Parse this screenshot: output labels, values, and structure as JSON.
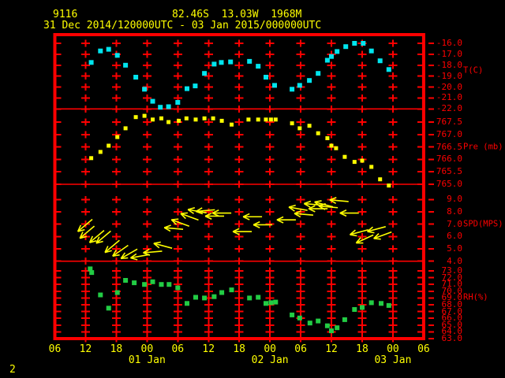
{
  "header": {
    "station_id": "9116",
    "location": "82.46S  13.03W  1968M",
    "time_range": "31 Dec 2014/120000UTC - 03 Jan 2015/000000UTC"
  },
  "footer": {
    "page_number": "2"
  },
  "colors": {
    "background": "#000000",
    "frame": "#ff0000",
    "axis_text": "#ff0000",
    "header_text": "#ffff00",
    "temperature": "#00e5ee",
    "pressure": "#ffff00",
    "wind": "#ffff00",
    "humidity": "#22cc44"
  },
  "x_axis": {
    "hour_labels": [
      "06",
      "12",
      "18",
      "00",
      "06",
      "12",
      "18",
      "00",
      "06",
      "12",
      "18",
      "00",
      "06"
    ],
    "date_labels": [
      {
        "label": "01 Jan",
        "col": 3
      },
      {
        "label": "02 Jan",
        "col": 7
      },
      {
        "label": "03 Jan",
        "col": 11
      }
    ]
  },
  "chart_data": {
    "type": "scatter",
    "subtype": "multi-panel time series (station meteogram)",
    "x_unit": "hours since 31 Dec 2014 06:00 UTC",
    "x_range": [
      0,
      72
    ],
    "grid": "plus-mark grid at 6-hour columns",
    "panels": [
      {
        "name": "temperature",
        "unit": "T(C)",
        "ticks": [
          "-16.0",
          "-17.0",
          "-18.0",
          "-19.0",
          "-20.0",
          "-21.0",
          "-22.0"
        ],
        "series": [
          [
            7.1,
            -17.75
          ],
          [
            8.9,
            -16.7
          ],
          [
            10.5,
            -16.55
          ],
          [
            12.2,
            -17.1
          ],
          [
            13.8,
            -18.0
          ],
          [
            15.8,
            -19.1
          ],
          [
            17.5,
            -20.2
          ],
          [
            19.1,
            -21.3
          ],
          [
            20.6,
            -21.85
          ],
          [
            22.2,
            -21.8
          ],
          [
            24.0,
            -21.4
          ],
          [
            25.8,
            -20.15
          ],
          [
            27.4,
            -19.9
          ],
          [
            29.2,
            -18.75
          ],
          [
            31.1,
            -17.9
          ],
          [
            32.5,
            -17.75
          ],
          [
            34.3,
            -17.7
          ],
          [
            38.0,
            -17.65
          ],
          [
            39.7,
            -18.1
          ],
          [
            41.2,
            -19.1
          ],
          [
            42.9,
            -19.85
          ],
          [
            46.3,
            -20.2
          ],
          [
            47.8,
            -19.85
          ],
          [
            49.7,
            -19.4
          ],
          [
            51.4,
            -18.75
          ],
          [
            53.2,
            -17.55
          ],
          [
            54.0,
            -17.2
          ],
          [
            55.1,
            -16.75
          ],
          [
            56.8,
            -16.3
          ],
          [
            58.5,
            -16.0
          ],
          [
            60.2,
            -16.0
          ],
          [
            61.8,
            -16.7
          ],
          [
            63.5,
            -17.6
          ],
          [
            65.2,
            -18.4
          ]
        ]
      },
      {
        "name": "pressure",
        "unit": "Pre (mb)",
        "ticks": [
          "767.5",
          "767.0",
          "766.5",
          "766.0",
          "765.5",
          "765.0"
        ],
        "series": [
          [
            7.1,
            766.05
          ],
          [
            8.9,
            766.3
          ],
          [
            10.5,
            766.55
          ],
          [
            12.2,
            766.9
          ],
          [
            13.8,
            767.25
          ],
          [
            15.8,
            767.7
          ],
          [
            17.5,
            767.75
          ],
          [
            19.1,
            767.6
          ],
          [
            20.8,
            767.65
          ],
          [
            22.2,
            767.5
          ],
          [
            24.2,
            767.55
          ],
          [
            25.7,
            767.65
          ],
          [
            27.5,
            767.6
          ],
          [
            29.2,
            767.65
          ],
          [
            30.9,
            767.65
          ],
          [
            32.6,
            767.55
          ],
          [
            34.5,
            767.4
          ],
          [
            37.8,
            767.6
          ],
          [
            39.7,
            767.6
          ],
          [
            41.2,
            767.6
          ],
          [
            42.2,
            767.6
          ],
          [
            43.1,
            767.6
          ],
          [
            46.3,
            767.45
          ],
          [
            47.8,
            767.25
          ],
          [
            49.7,
            767.35
          ],
          [
            51.4,
            767.05
          ],
          [
            53.2,
            766.85
          ],
          [
            54.0,
            766.55
          ],
          [
            54.9,
            766.45
          ],
          [
            56.6,
            766.1
          ],
          [
            58.5,
            765.9
          ],
          [
            60.0,
            765.95
          ],
          [
            61.8,
            765.7
          ],
          [
            63.5,
            765.2
          ],
          [
            65.2,
            764.95
          ]
        ]
      },
      {
        "name": "wind_speed",
        "unit": "SPD(MPS)",
        "ticks": [
          "9.0",
          "8.0",
          "7.0",
          "6.0",
          "5.0",
          "4.0"
        ],
        "vector_format": [
          "hours",
          "speed_mps",
          "arrow_direction_deg_screen"
        ],
        "vectors": [
          [
            5.9,
            6.9,
            140
          ],
          [
            6.3,
            6.35,
            140
          ],
          [
            8.2,
            6.0,
            140
          ],
          [
            9.5,
            5.95,
            140
          ],
          [
            11.2,
            5.2,
            140
          ],
          [
            12.8,
            4.85,
            145
          ],
          [
            14.5,
            4.6,
            150
          ],
          [
            16.6,
            4.4,
            170
          ],
          [
            19.1,
            4.75,
            175
          ],
          [
            21.1,
            5.25,
            195
          ],
          [
            23.2,
            6.65,
            185
          ],
          [
            24.5,
            7.1,
            200
          ],
          [
            26.3,
            7.6,
            200
          ],
          [
            27.8,
            8.05,
            190
          ],
          [
            29.4,
            8.1,
            175
          ],
          [
            31.2,
            7.65,
            180
          ],
          [
            32.6,
            7.9,
            180
          ],
          [
            36.6,
            6.4,
            180
          ],
          [
            38.6,
            7.6,
            180
          ],
          [
            40.6,
            6.95,
            180
          ],
          [
            45.2,
            7.35,
            180
          ],
          [
            47.5,
            8.25,
            190
          ],
          [
            48.6,
            7.8,
            185
          ],
          [
            50.5,
            8.6,
            185
          ],
          [
            51.4,
            8.25,
            180
          ],
          [
            52.5,
            8.6,
            195
          ],
          [
            53.4,
            8.4,
            185
          ],
          [
            55.5,
            8.9,
            185
          ],
          [
            57.5,
            7.9,
            180
          ],
          [
            59.4,
            6.35,
            165
          ],
          [
            60.5,
            5.8,
            155
          ],
          [
            62.8,
            6.6,
            165
          ],
          [
            64.0,
            6.1,
            160
          ]
        ]
      },
      {
        "name": "relative_humidity",
        "unit": "RH(%)",
        "ticks": [
          "73.0",
          "72.0",
          "71.0",
          "70.0",
          "69.0",
          "68.0",
          "67.0",
          "66.0",
          "65.0",
          "64.0",
          "63.0"
        ],
        "series": [
          [
            6.9,
            73.3
          ],
          [
            7.2,
            72.75
          ],
          [
            8.9,
            69.45
          ],
          [
            10.5,
            67.5
          ],
          [
            12.2,
            69.8
          ],
          [
            13.8,
            71.6
          ],
          [
            15.5,
            71.25
          ],
          [
            17.5,
            71.0
          ],
          [
            19.1,
            71.4
          ],
          [
            20.8,
            71.0
          ],
          [
            22.3,
            71.0
          ],
          [
            24.0,
            70.5
          ],
          [
            25.8,
            68.2
          ],
          [
            27.5,
            69.1
          ],
          [
            29.2,
            69.0
          ],
          [
            31.1,
            69.2
          ],
          [
            32.6,
            69.8
          ],
          [
            34.5,
            70.2
          ],
          [
            38.0,
            69.0
          ],
          [
            39.7,
            69.1
          ],
          [
            41.2,
            68.2
          ],
          [
            42.2,
            68.3
          ],
          [
            43.1,
            68.4
          ],
          [
            46.3,
            66.5
          ],
          [
            47.8,
            66.05
          ],
          [
            49.8,
            65.3
          ],
          [
            51.4,
            65.6
          ],
          [
            53.2,
            64.9
          ],
          [
            54.0,
            64.15
          ],
          [
            55.1,
            64.6
          ],
          [
            56.6,
            65.8
          ],
          [
            58.5,
            67.3
          ],
          [
            60.0,
            67.6
          ],
          [
            61.8,
            68.3
          ],
          [
            63.7,
            68.2
          ],
          [
            65.2,
            67.9
          ]
        ]
      }
    ]
  }
}
